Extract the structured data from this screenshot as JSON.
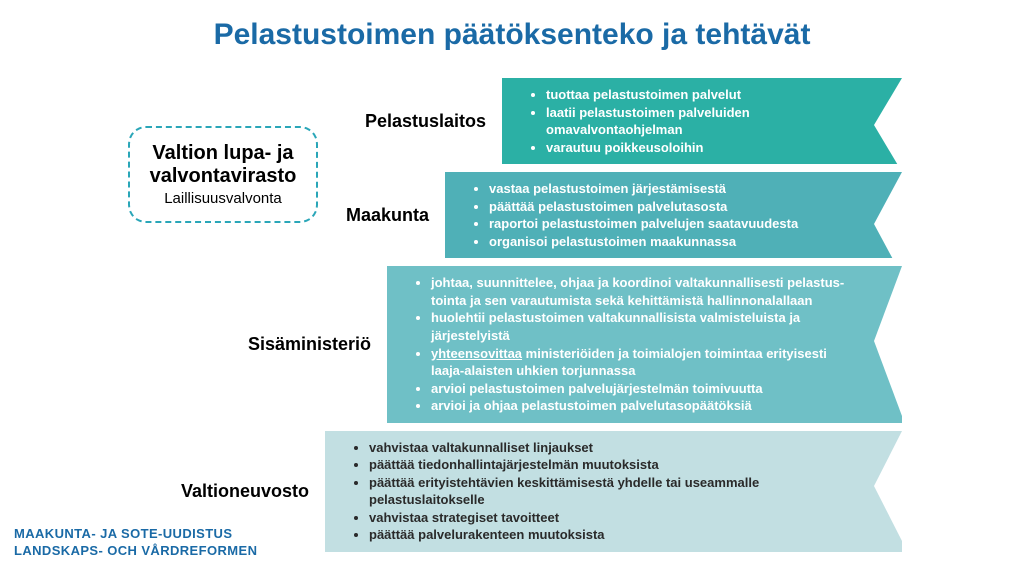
{
  "title": {
    "text": "Pelastustoimen päätöksenteko ja tehtävät",
    "color": "#1a6aa6"
  },
  "side_box": {
    "line1": "Valtion lupa- ja",
    "line2": "valvontavirasto",
    "line3": "Laillisuusvalvonta",
    "border_color": "#2aa6b8"
  },
  "rows": [
    {
      "label": "Pelastuslaitos",
      "bg": "#2bb0a5",
      "text_color": "#ffffff",
      "items": [
        "tuottaa pelastustoimen palvelut",
        "laatii pelastustoimen palveluiden omavalvontaohjelman",
        "varautuu poikkeusoloihin"
      ]
    },
    {
      "label": "Maakunta",
      "bg": "#4fb0b7",
      "text_color": "#ffffff",
      "items": [
        "vastaa pelastustoimen järjestämisestä",
        "päättää pelastustoimen palvelutasosta",
        "raportoi pelastustoimen palvelujen saatavuudesta",
        "organisoi pelastustoimen maakunnassa"
      ]
    },
    {
      "label": "Sisäministeriö",
      "bg": "#6fc0c6",
      "text_color": "#ffffff",
      "items": [
        "johtaa, suunnittelee, ohjaa ja koordinoi valtakunnallisesti pelastus- tointa ja sen varautumista sekä kehittämistä hallinnonalallaan",
        "huolehtii pelastustoimen valtakunnallisista valmisteluista ja järjestelyistä",
        "<span class=\"u\">yhteensovittaa</span> ministeriöiden ja toimialojen toimintaa erityisesti laaja-alaisten uhkien torjunnassa",
        "arvioi pelastustoimen palvelujärjestelmän toimivuutta",
        "arvioi ja ohjaa pelastustoimen palvelutasopäätöksiä"
      ]
    },
    {
      "label": "Valtioneuvosto",
      "bg": "#c2dfe2",
      "text_color": "#2a2a2a",
      "items": [
        "vahvistaa valtakunnalliset linjaukset",
        "päättää tiedonhallintajärjestelmän muutoksista",
        "päättää erityistehtävien keskittämisestä yhdelle tai useammalle pelastuslaitokselle",
        "vahvistaa strategiset tavoitteet",
        "päättää palvelurakenteen muutoksista"
      ]
    }
  ],
  "footer": {
    "line1": "MAAKUNTA- JA SOTE-UUDISTUS",
    "line2": "LANDSKAPS- OCH VÅRDREFORMEN",
    "color": "#1a6aa6"
  }
}
